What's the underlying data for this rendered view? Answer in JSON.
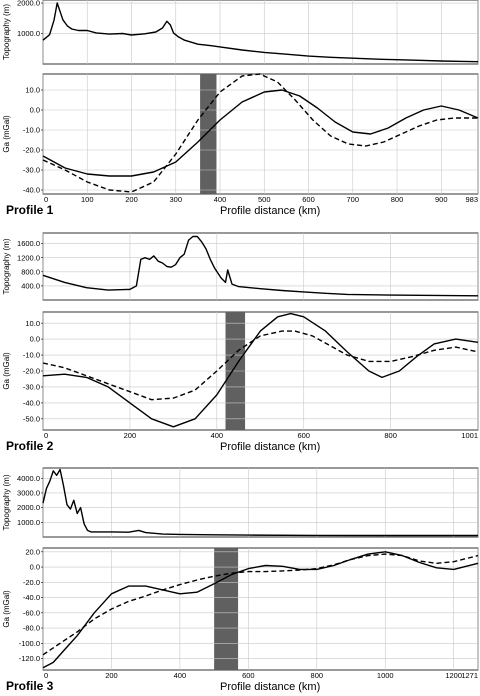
{
  "chart_data": [
    {
      "type": "line",
      "title": "Profile 1",
      "xlabel": "Profile distance (km)",
      "xticks": [
        0,
        100,
        200,
        300,
        400,
        500,
        600,
        700,
        800,
        900,
        983
      ],
      "topography": {
        "ylabel": "Topography (m)",
        "yticks": [
          1000.0,
          2000.0
        ],
        "ytick_labels": [
          "1000.0",
          "2000.0"
        ],
        "ylim": [
          0,
          2100
        ],
        "xlim": [
          0,
          983
        ],
        "grid": true,
        "series": [
          {
            "style": "solid",
            "x": [
              0,
              15,
              25,
              32,
              38,
              45,
              55,
              65,
              80,
              100,
              120,
              150,
              180,
              200,
              230,
              255,
              270,
              280,
              288,
              295,
              305,
              320,
              350,
              380,
              400,
              450,
              500,
              550,
              600,
              650,
              700,
              750,
              800,
              850,
              900,
              950,
              983
            ],
            "y": [
              780,
              960,
              1450,
              2000,
              1750,
              1450,
              1250,
              1150,
              1100,
              1100,
              1020,
              980,
              1000,
              950,
              990,
              1050,
              1180,
              1400,
              1280,
              1020,
              900,
              780,
              650,
              600,
              560,
              460,
              380,
              320,
              260,
              220,
              190,
              160,
              140,
              120,
              100,
              85,
              75
            ]
          }
        ]
      },
      "gravity": {
        "ylabel": "Ga (mGal)",
        "yticks": [
          10.0,
          0.0,
          -10.0,
          -20.0,
          -30.0,
          -40.0
        ],
        "ytick_labels": [
          "10.0",
          "0.0",
          "-10.0",
          "-20.0",
          "-30.0",
          "-40.0"
        ],
        "ylim": [
          -42,
          18
        ],
        "xlim": [
          0,
          983
        ],
        "grid": true,
        "band": [
          355,
          392
        ],
        "series": [
          {
            "style": "solid",
            "x": [
              0,
              50,
              100,
              150,
              200,
              250,
              300,
              350,
              400,
              450,
              500,
              540,
              580,
              620,
              660,
              700,
              740,
              780,
              820,
              860,
              900,
              940,
              983
            ],
            "y": [
              -23,
              -29,
              -32,
              -33,
              -33,
              -31,
              -26,
              -16,
              -5,
              4,
              9,
              10,
              7,
              1,
              -6,
              -11,
              -12,
              -9,
              -4,
              0,
              2,
              0,
              -4
            ]
          },
          {
            "style": "dashed",
            "x": [
              0,
              50,
              100,
              150,
              200,
              250,
              300,
              350,
              400,
              450,
              490,
              530,
              570,
              610,
              650,
              690,
              730,
              770,
              810,
              850,
              890,
              930,
              983
            ],
            "y": [
              -25,
              -30,
              -36,
              -40,
              -41,
              -36,
              -22,
              -5,
              9,
              17,
              18,
              14,
              5,
              -5,
              -13,
              -17,
              -18,
              -16,
              -12,
              -8,
              -5,
              -4,
              -4
            ]
          }
        ]
      }
    },
    {
      "type": "line",
      "title": "Profile 2",
      "xlabel": "Profile distance (km)",
      "xticks": [
        0,
        200,
        400,
        600,
        800,
        1001
      ],
      "topography": {
        "ylabel": "Topography (m)",
        "yticks": [
          400.0,
          800.0,
          1200.0,
          1600.0
        ],
        "ytick_labels": [
          "400.0",
          "800.0",
          "1200.0",
          "1600.0"
        ],
        "ylim": [
          0,
          1900
        ],
        "xlim": [
          0,
          1001
        ],
        "grid": true,
        "series": [
          {
            "style": "solid",
            "x": [
              0,
              50,
              100,
              150,
              200,
              215,
              225,
              235,
              245,
              255,
              265,
              275,
              285,
              295,
              305,
              315,
              325,
              335,
              345,
              355,
              365,
              375,
              385,
              395,
              410,
              420,
              425,
              435,
              450,
              500,
              550,
              600,
              650,
              700,
              800,
              900,
              1001
            ],
            "y": [
              700,
              500,
              350,
              280,
              300,
              400,
              1150,
              1200,
              1150,
              1250,
              1100,
              1050,
              950,
              930,
              1000,
              1200,
              1300,
              1700,
              1800,
              1800,
              1650,
              1450,
              1150,
              900,
              620,
              500,
              850,
              450,
              380,
              320,
              270,
              230,
              190,
              160,
              140,
              130,
              120
            ]
          }
        ]
      },
      "gravity": {
        "ylabel": "Ga (mGal)",
        "yticks": [
          10.0,
          0.0,
          -10.0,
          -20.0,
          -30.0,
          -40.0,
          -50.0
        ],
        "ytick_labels": [
          "10.0",
          "0.0",
          "-10.0",
          "-20.0",
          "-30.0",
          "-40.0",
          "-50.0"
        ],
        "ylim": [
          -57,
          17
        ],
        "xlim": [
          0,
          1001
        ],
        "grid": true,
        "band": [
          420,
          465
        ],
        "series": [
          {
            "style": "solid",
            "x": [
              0,
              50,
              100,
              150,
              200,
              250,
              300,
              350,
              400,
              450,
              500,
              540,
              570,
              600,
              650,
              700,
              750,
              780,
              820,
              860,
              900,
              950,
              1001
            ],
            "y": [
              -23,
              -22,
              -24,
              -30,
              -40,
              -50,
              -55,
              -50,
              -35,
              -14,
              5,
              14,
              16,
              14,
              5,
              -8,
              -20,
              -24,
              -20,
              -11,
              -3,
              0,
              -2
            ]
          },
          {
            "style": "dashed",
            "x": [
              0,
              50,
              100,
              150,
              200,
              250,
              300,
              350,
              400,
              450,
              500,
              550,
              580,
              620,
              660,
              700,
              750,
              800,
              850,
              900,
              950,
              1001
            ],
            "y": [
              -15,
              -18,
              -23,
              -28,
              -33,
              -38,
              -37,
              -32,
              -20,
              -7,
              2,
              5,
              5,
              2,
              -4,
              -10,
              -14,
              -14,
              -11,
              -7,
              -5,
              -8
            ]
          }
        ]
      }
    },
    {
      "type": "line",
      "title": "Profile 3",
      "xlabel": "Profile distance (km)",
      "xticks": [
        0,
        200,
        400,
        600,
        800,
        1000,
        1200,
        1271
      ],
      "topography": {
        "ylabel": "Topography (m)",
        "yticks": [
          1000.0,
          2000.0,
          3000.0,
          4000.0
        ],
        "ytick_labels": [
          "1000.0",
          "2000.0",
          "3000.0",
          "4000.0"
        ],
        "ylim": [
          0,
          4700
        ],
        "xlim": [
          0,
          1271
        ],
        "grid": true,
        "series": [
          {
            "style": "solid",
            "x": [
              0,
              10,
              20,
              30,
              40,
              50,
              60,
              70,
              80,
              90,
              100,
              110,
              120,
              130,
              140,
              160,
              200,
              250,
              280,
              300,
              350,
              400,
              500,
              600,
              800,
              1000,
              1271
            ],
            "y": [
              2300,
              3300,
              3800,
              4500,
              4200,
              4600,
              3500,
              2200,
              1900,
              2500,
              1600,
              2000,
              900,
              450,
              350,
              350,
              350,
              330,
              450,
              300,
              200,
              180,
              150,
              130,
              110,
              100,
              100
            ]
          }
        ]
      },
      "gravity": {
        "ylabel": "Ga (mGal)",
        "yticks": [
          20.0,
          0.0,
          -20.0,
          -40.0,
          -60.0,
          -80.0,
          -100.0,
          -120.0
        ],
        "ytick_labels": [
          "20.0",
          "0.0",
          "-20.0",
          "-40.0",
          "-60.0",
          "-80.0",
          "-100.0",
          "-120.0"
        ],
        "ylim": [
          -135,
          25
        ],
        "xlim": [
          0,
          1271
        ],
        "grid": true,
        "band": [
          500,
          570
        ],
        "series": [
          {
            "style": "solid",
            "x": [
              0,
              30,
              60,
              100,
              150,
              200,
              250,
              300,
              350,
              400,
              450,
              500,
              550,
              600,
              650,
              700,
              750,
              800,
              850,
              900,
              950,
              1000,
              1050,
              1100,
              1150,
              1200,
              1271
            ],
            "y": [
              -132,
              -125,
              -110,
              -90,
              -60,
              -35,
              -25,
              -25,
              -30,
              -35,
              -33,
              -22,
              -10,
              -2,
              2,
              1,
              -3,
              -3,
              2,
              10,
              17,
              20,
              15,
              6,
              -1,
              -3,
              5
            ]
          },
          {
            "style": "dashed",
            "x": [
              0,
              50,
              100,
              150,
              200,
              250,
              300,
              350,
              400,
              450,
              500,
              550,
              600,
              650,
              700,
              750,
              800,
              850,
              900,
              950,
              1000,
              1050,
              1100,
              1150,
              1200,
              1271
            ],
            "y": [
              -115,
              -100,
              -85,
              -68,
              -55,
              -45,
              -38,
              -30,
              -23,
              -17,
              -12,
              -8,
              -6,
              -6,
              -5,
              -4,
              -2,
              3,
              10,
              15,
              17,
              15,
              8,
              5,
              7,
              15
            ]
          }
        ]
      }
    }
  ]
}
